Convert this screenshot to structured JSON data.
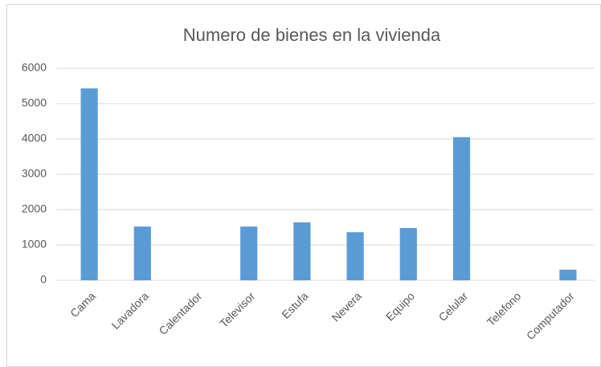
{
  "chart_data": {
    "type": "bar",
    "title": "Numero de bienes en la vivienda",
    "categories": [
      "Cama",
      "Lavadora",
      "Calentador",
      "Televisor",
      "Estufa",
      "Nevera",
      "Equipo",
      "Celular",
      "Telefono",
      "Computador"
    ],
    "values": [
      5430,
      1520,
      0,
      1520,
      1640,
      1360,
      1480,
      4050,
      0,
      300
    ],
    "color": "#5b9bd5",
    "ylim": [
      0,
      6000
    ],
    "yticks": [
      0,
      1000,
      2000,
      3000,
      4000,
      5000,
      6000
    ],
    "grid": true
  }
}
